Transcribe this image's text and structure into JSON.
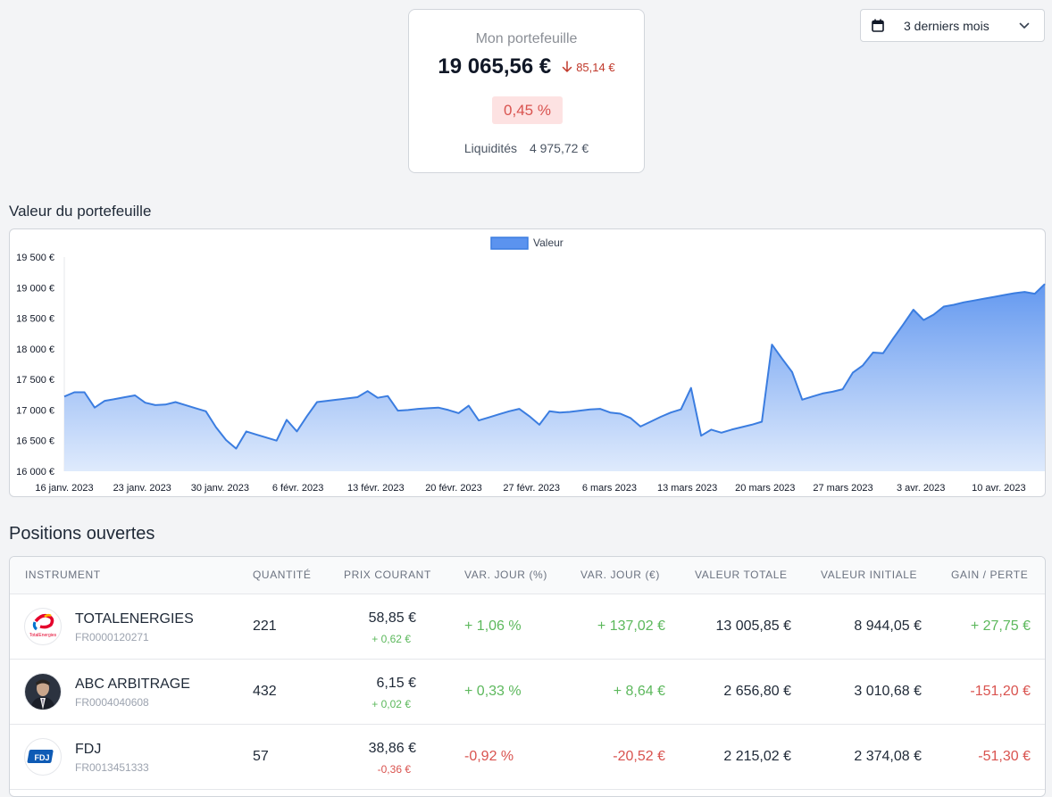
{
  "summary": {
    "title": "Mon portefeuille",
    "total": "19 065,56 €",
    "delta": "85,14 €",
    "percent": "0,45 %",
    "liquidity_label": "Liquidités",
    "liquidity_value": "4 975,72 €"
  },
  "period_select": {
    "icon": "calendar-icon",
    "value": "3 derniers mois"
  },
  "chart_section_title": "Valeur du portefeuille",
  "chart_data": {
    "type": "area",
    "title": "",
    "legend": [
      "Valeur"
    ],
    "legend_position": "top",
    "color": "#3b7de0",
    "ylim": [
      16000,
      19500
    ],
    "yticks": [
      16000,
      16500,
      17000,
      17500,
      18000,
      18500,
      19000,
      19500
    ],
    "ytick_labels": [
      "16 000 €",
      "16 500 €",
      "17 000 €",
      "17 500 €",
      "18 000 €",
      "18 500 €",
      "19 000 €",
      "19 500 €"
    ],
    "xtick_labels": [
      "16 janv. 2023",
      "23 janv. 2023",
      "30 janv. 2023",
      "6 févr. 2023",
      "13 févr. 2023",
      "20 févr. 2023",
      "27 févr. 2023",
      "6 mars 2023",
      "13 mars 2023",
      "20 mars 2023",
      "27 mars 2023",
      "3 avr. 2023",
      "10 avr. 2023"
    ],
    "series": [
      {
        "name": "Valeur",
        "values": [
          17220,
          17290,
          17290,
          17040,
          17150,
          17180,
          17210,
          17240,
          17120,
          17080,
          17090,
          17130,
          17080,
          17030,
          16980,
          16720,
          16510,
          16370,
          16650,
          16600,
          16550,
          16500,
          16840,
          16650,
          16900,
          17130,
          17150,
          17170,
          17190,
          17210,
          17310,
          17200,
          17230,
          16990,
          17000,
          17020,
          17030,
          17040,
          17000,
          16950,
          17070,
          16830,
          16880,
          16930,
          16980,
          17020,
          16900,
          16760,
          16980,
          16960,
          16970,
          16990,
          17010,
          17020,
          16960,
          16940,
          16870,
          16730,
          16810,
          16890,
          16960,
          17010,
          17360,
          16580,
          16680,
          16630,
          16680,
          16720,
          16760,
          16810,
          18070,
          17840,
          17620,
          17170,
          17220,
          17270,
          17300,
          17340,
          17610,
          17730,
          17940,
          17930,
          18170,
          18400,
          18640,
          18470,
          18560,
          18690,
          18720,
          18760,
          18790,
          18820,
          18850,
          18880,
          18910,
          18930,
          18900,
          19060
        ]
      }
    ]
  },
  "positions_title": "Positions ouvertes",
  "table": {
    "headers": [
      "INSTRUMENT",
      "QUANTITÉ",
      "PRIX COURANT",
      "VAR. JOUR (%)",
      "VAR. JOUR (€)",
      "VALEUR TOTALE",
      "VALEUR INITIALE",
      "GAIN / PERTE"
    ],
    "rows": [
      {
        "logo": "totalenergies-logo",
        "logo_text": "TotalEnergies",
        "name": "TOTALENERGIES",
        "isin": "FR0000120271",
        "qty": "221",
        "price": "58,85 €",
        "price_change": "+ 0,62 €",
        "day_pct": "+ 1,06 %",
        "day_eur": "+ 137,02 €",
        "total": "13 005,85 €",
        "initial": "8 944,05 €",
        "gain": "+ 27,75 €",
        "trend": "pos"
      },
      {
        "logo": "abc-arbitrage-logo",
        "logo_text": "",
        "name": "ABC ARBITRAGE",
        "isin": "FR0004040608",
        "qty": "432",
        "price": "6,15 €",
        "price_change": "+ 0,02 €",
        "day_pct": "+ 0,33 %",
        "day_eur": "+ 8,64 €",
        "total": "2 656,80 €",
        "initial": "3 010,68 €",
        "gain": "-151,20 €",
        "trend": "pos"
      },
      {
        "logo": "fdj-logo",
        "logo_text": "FDJ",
        "name": "FDJ",
        "isin": "FR0013451333",
        "qty": "57",
        "price": "38,86 €",
        "price_change": "-0,36 €",
        "day_pct": "-0,92 %",
        "day_eur": "-20,52 €",
        "total": "2 215,02 €",
        "initial": "2 374,08 €",
        "gain": "-51,30 €",
        "trend": "neg"
      }
    ]
  }
}
